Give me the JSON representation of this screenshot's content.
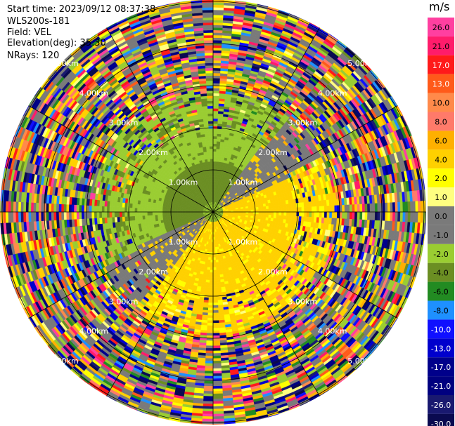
{
  "header": {
    "start_time": "Start time: 2023/09/12 08:37:38",
    "instrument": "WLS200s-181",
    "field": "Field: VEL",
    "elevation": "Elevation(deg): 35.30",
    "nrays": "NRays: 120"
  },
  "chart_data": {
    "type": "heatmap",
    "projection": "polar-ppi",
    "field": "VEL",
    "units": "m/s",
    "n_rays": 120,
    "range_rings_km": [
      1,
      2,
      3,
      4,
      5
    ],
    "ring_labels": [
      "1.00km",
      "2.00km",
      "3.00km",
      "4.00km",
      "5.00km"
    ],
    "max_range_km": 5.2,
    "spokes_deg": [
      0,
      30,
      60,
      90,
      120,
      150,
      180,
      210,
      240,
      270,
      300,
      330
    ],
    "colorbar": {
      "title": "m/s",
      "ticks": [
        "26.0",
        "21.0",
        "17.0",
        "13.0",
        "10.0",
        "8.0",
        "6.0",
        "4.0",
        "2.0",
        "1.0",
        "0.0",
        "-1.0",
        "-2.0",
        "-4.0",
        "-6.0",
        "-8.0",
        "-10.0",
        "-13.0",
        "-17.0",
        "-21.0",
        "-26.0",
        "-30.0"
      ],
      "colors": [
        "#ff3fa0",
        "#ff1c6b",
        "#ff1a1a",
        "#ff5a1a",
        "#ff8a4a",
        "#ff7a6a",
        "#ffb000",
        "#ffd000",
        "#ffff00",
        "#ffff80",
        "#7a7a7a",
        "#7a7a7a",
        "#9acd32",
        "#6b8e23",
        "#228b22",
        "#1e90ff",
        "#1010ff",
        "#0000cd",
        "#00008b",
        "#000080",
        "#191970",
        "#0a0a50"
      ]
    }
  }
}
